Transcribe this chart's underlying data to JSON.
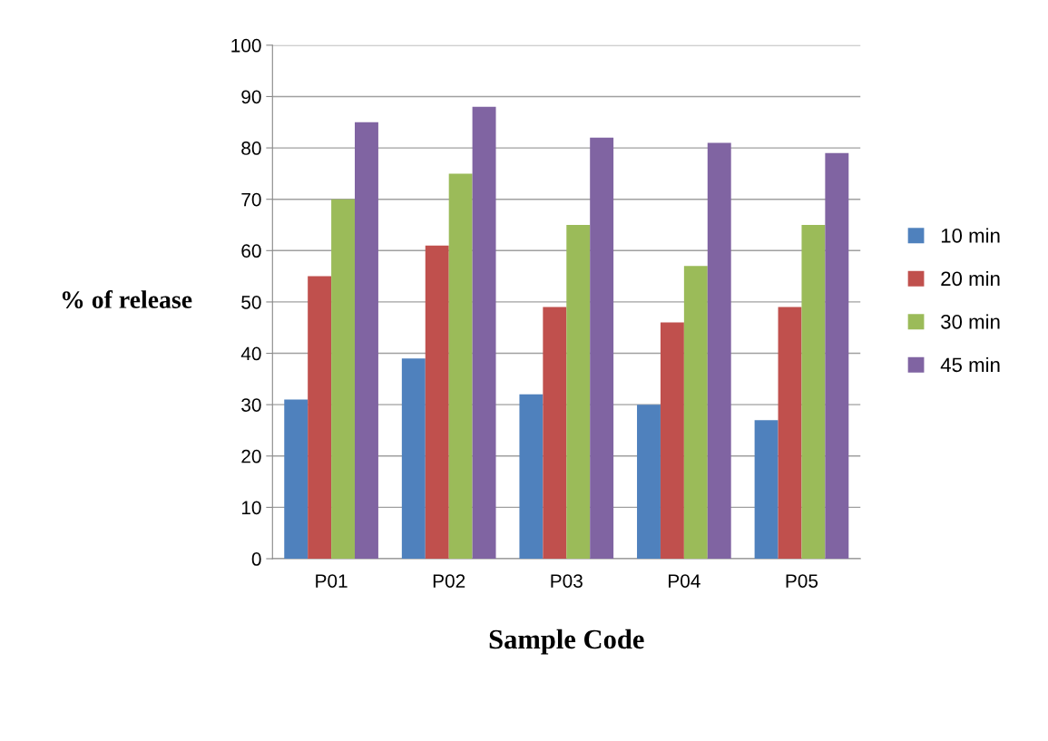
{
  "chart_data": {
    "type": "bar",
    "xlabel": "Sample Code",
    "ylabel": "% of release",
    "categories": [
      "P01",
      "P02",
      "P03",
      "P04",
      "P05"
    ],
    "series": [
      {
        "name": "10 min",
        "color": "#4f81bd",
        "values": [
          31,
          39,
          32,
          30,
          27
        ]
      },
      {
        "name": "20 min",
        "color": "#c0504d",
        "values": [
          55,
          61,
          49,
          46,
          49
        ]
      },
      {
        "name": "30 min",
        "color": "#9bbb59",
        "values": [
          70,
          75,
          65,
          57,
          65
        ]
      },
      {
        "name": "45 min",
        "color": "#8064a2",
        "values": [
          85,
          88,
          82,
          81,
          79
        ]
      }
    ],
    "ylim": [
      0,
      100
    ],
    "yticks": [
      0,
      10,
      20,
      30,
      40,
      50,
      60,
      70,
      80,
      90,
      100
    ],
    "grid": "y",
    "legend": "right"
  }
}
